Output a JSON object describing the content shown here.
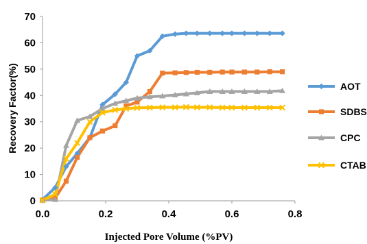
{
  "chart_data": {
    "type": "line",
    "title": "",
    "xlabel": "Injected Pore Volume (%PV)",
    "ylabel": "Recovery Factor(%)",
    "xlim": [
      0,
      0.8
    ],
    "ylim": [
      0,
      70
    ],
    "x_ticks": [
      "0.0",
      "0.2",
      "0.4",
      "0.6",
      "0.8"
    ],
    "y_ticks": [
      "0",
      "10",
      "20",
      "30",
      "40",
      "50",
      "60",
      "70"
    ],
    "grid": false,
    "legend_position": "right",
    "series": [
      {
        "name": "AOT",
        "color": "#5B9BD5",
        "marker": "diamond",
        "points": [
          [
            0.0,
            0.5
          ],
          [
            0.04,
            5
          ],
          [
            0.075,
            13
          ],
          [
            0.11,
            18
          ],
          [
            0.15,
            24
          ],
          [
            0.19,
            36.5
          ],
          [
            0.23,
            40.5
          ],
          [
            0.265,
            45
          ],
          [
            0.3,
            55
          ],
          [
            0.34,
            57
          ],
          [
            0.38,
            62.5
          ],
          [
            0.42,
            63.3
          ],
          [
            0.455,
            63.6
          ],
          [
            0.49,
            63.6
          ],
          [
            0.53,
            63.6
          ],
          [
            0.57,
            63.6
          ],
          [
            0.6,
            63.6
          ],
          [
            0.64,
            63.6
          ],
          [
            0.68,
            63.6
          ],
          [
            0.72,
            63.6
          ],
          [
            0.76,
            63.6
          ]
        ]
      },
      {
        "name": "SDBS",
        "color": "#ED7D31",
        "marker": "square",
        "points": [
          [
            0.0,
            0.3
          ],
          [
            0.04,
            1
          ],
          [
            0.075,
            7.5
          ],
          [
            0.11,
            16.5
          ],
          [
            0.15,
            24
          ],
          [
            0.19,
            26.5
          ],
          [
            0.23,
            28.5
          ],
          [
            0.265,
            36
          ],
          [
            0.3,
            37.5
          ],
          [
            0.34,
            41.5
          ],
          [
            0.38,
            48.5
          ],
          [
            0.42,
            48.6
          ],
          [
            0.455,
            48.7
          ],
          [
            0.49,
            48.8
          ],
          [
            0.53,
            48.8
          ],
          [
            0.57,
            48.9
          ],
          [
            0.6,
            48.9
          ],
          [
            0.64,
            48.9
          ],
          [
            0.68,
            48.9
          ],
          [
            0.72,
            49
          ],
          [
            0.76,
            49
          ]
        ]
      },
      {
        "name": "CPC",
        "color": "#A5A5A5",
        "marker": "triangle",
        "points": [
          [
            0.0,
            0.2
          ],
          [
            0.04,
            0.5
          ],
          [
            0.075,
            21
          ],
          [
            0.11,
            30.5
          ],
          [
            0.15,
            32
          ],
          [
            0.19,
            35
          ],
          [
            0.23,
            37
          ],
          [
            0.265,
            38
          ],
          [
            0.3,
            39
          ],
          [
            0.34,
            39.5
          ],
          [
            0.38,
            39.8
          ],
          [
            0.42,
            40.2
          ],
          [
            0.455,
            40.6
          ],
          [
            0.49,
            41
          ],
          [
            0.53,
            41.5
          ],
          [
            0.57,
            41.5
          ],
          [
            0.6,
            41.5
          ],
          [
            0.64,
            41.5
          ],
          [
            0.68,
            41.5
          ],
          [
            0.72,
            41.5
          ],
          [
            0.76,
            41.8
          ]
        ]
      },
      {
        "name": "CTAB",
        "color": "#FFC000",
        "marker": "x",
        "points": [
          [
            0.0,
            0.2
          ],
          [
            0.04,
            2.5
          ],
          [
            0.075,
            16
          ],
          [
            0.11,
            22
          ],
          [
            0.15,
            30
          ],
          [
            0.19,
            33.5
          ],
          [
            0.23,
            34.5
          ],
          [
            0.265,
            35
          ],
          [
            0.3,
            35.3
          ],
          [
            0.34,
            35.4
          ],
          [
            0.38,
            35.5
          ],
          [
            0.42,
            35.5
          ],
          [
            0.455,
            35.6
          ],
          [
            0.49,
            35.5
          ],
          [
            0.53,
            35.5
          ],
          [
            0.57,
            35.4
          ],
          [
            0.6,
            35.4
          ],
          [
            0.64,
            35.4
          ],
          [
            0.68,
            35.4
          ],
          [
            0.72,
            35.4
          ],
          [
            0.76,
            35.4
          ]
        ]
      }
    ]
  }
}
